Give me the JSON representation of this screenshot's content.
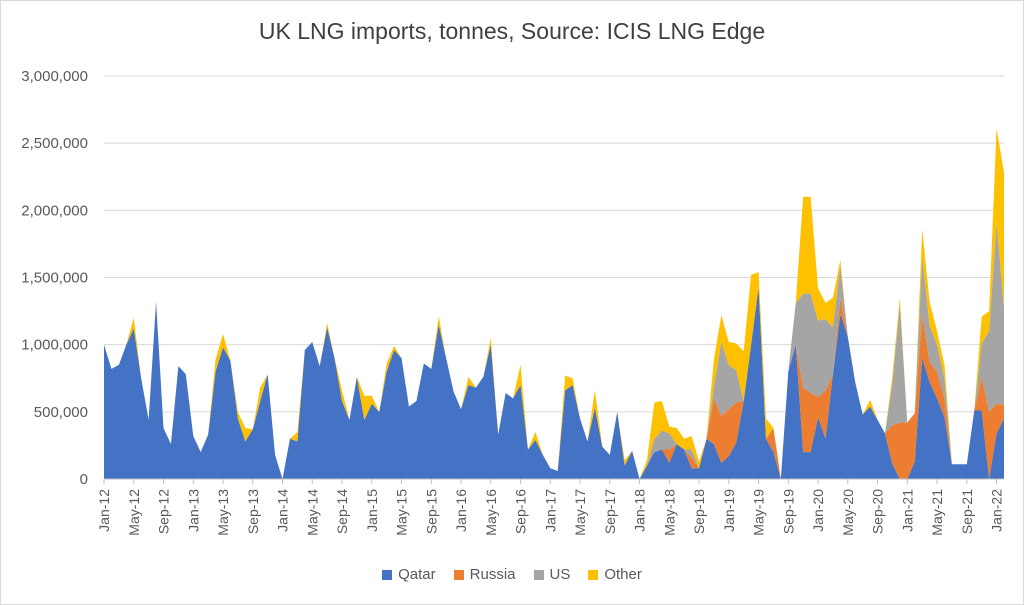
{
  "chart_data": {
    "type": "area",
    "stacked": true,
    "title": "UK LNG imports, tonnes, Source: ICIS LNG Edge",
    "xlabel": "",
    "ylabel": "",
    "ylim": [
      0,
      3000000
    ],
    "yticks": [
      0,
      500000,
      1000000,
      1500000,
      2000000,
      2500000,
      3000000
    ],
    "ytick_labels": [
      "0",
      "500,000",
      "1,000,000",
      "1,500,000",
      "2,000,000",
      "2,500,000",
      "3,000,000"
    ],
    "start": "2012-01",
    "xtick_labels": [
      "Jan-12",
      "May-12",
      "Sep-12",
      "Jan-13",
      "May-13",
      "Sep-13",
      "Jan-14",
      "May-14",
      "Sep-14",
      "Jan-15",
      "May-15",
      "Sep-15",
      "Jan-16",
      "May-16",
      "Sep-16",
      "Jan-17",
      "May-17",
      "Sep-17",
      "Jan-18",
      "May-18",
      "Sep-18",
      "Jan-19",
      "May-19",
      "Sep-19",
      "Jan-20",
      "May-20",
      "Sep-20",
      "Jan-21",
      "May-21",
      "Sep-21",
      "Jan-22"
    ],
    "legend_position": "bottom",
    "series": [
      {
        "name": "Qatar",
        "color": "#4472C4",
        "values": [
          1000000,
          820000,
          850000,
          1000000,
          1120000,
          750000,
          440000,
          1320000,
          380000,
          260000,
          840000,
          780000,
          320000,
          200000,
          330000,
          800000,
          980000,
          880000,
          450000,
          280000,
          370000,
          580000,
          780000,
          180000,
          0,
          300000,
          280000,
          960000,
          1020000,
          840000,
          1130000,
          900000,
          580000,
          440000,
          760000,
          440000,
          560000,
          500000,
          800000,
          960000,
          900000,
          540000,
          580000,
          860000,
          820000,
          1150000,
          900000,
          650000,
          520000,
          700000,
          680000,
          760000,
          1000000,
          330000,
          640000,
          600000,
          700000,
          220000,
          290000,
          180000,
          80000,
          60000,
          660000,
          700000,
          450000,
          280000,
          530000,
          240000,
          180000,
          500000,
          100000,
          210000,
          0,
          100000,
          200000,
          220000,
          120000,
          260000,
          220000,
          80000,
          80000,
          300000,
          260000,
          120000,
          170000,
          270000,
          580000,
          1000000,
          1430000,
          300000,
          200000,
          0,
          800000,
          1000000,
          200000,
          200000,
          460000,
          300000,
          780000,
          1230000,
          1060000,
          720000,
          480000,
          540000,
          440000,
          340000,
          110000,
          0,
          0,
          130000,
          900000,
          720000,
          600000,
          460000,
          110000,
          110000,
          110000,
          510000,
          510000,
          0,
          340000,
          450000
        ]
      },
      {
        "name": "Russia",
        "color": "#ED7D31",
        "values": [
          0,
          0,
          0,
          0,
          0,
          0,
          0,
          0,
          0,
          0,
          0,
          0,
          0,
          0,
          0,
          0,
          0,
          0,
          0,
          0,
          0,
          0,
          0,
          0,
          0,
          0,
          0,
          0,
          0,
          0,
          0,
          0,
          0,
          0,
          0,
          0,
          0,
          0,
          0,
          0,
          0,
          0,
          0,
          0,
          0,
          0,
          0,
          0,
          0,
          0,
          0,
          0,
          0,
          0,
          0,
          0,
          0,
          0,
          0,
          0,
          0,
          0,
          0,
          0,
          0,
          0,
          0,
          0,
          0,
          0,
          0,
          0,
          0,
          0,
          0,
          0,
          100000,
          0,
          0,
          80000,
          0,
          0,
          340000,
          350000,
          350000,
          300000,
          0,
          0,
          0,
          0,
          180000,
          0,
          0,
          0,
          480000,
          440000,
          150000,
          360000,
          0,
          120000,
          0,
          0,
          0,
          0,
          0,
          0,
          290000,
          420000,
          420000,
          360000,
          330000,
          150000,
          200000,
          140000,
          0,
          0,
          0,
          0,
          250000,
          500000,
          220000,
          100000
        ]
      },
      {
        "name": "US",
        "color": "#A5A5A5",
        "values": [
          0,
          0,
          0,
          0,
          0,
          0,
          0,
          0,
          0,
          0,
          0,
          0,
          0,
          0,
          0,
          0,
          0,
          0,
          0,
          0,
          0,
          0,
          0,
          0,
          0,
          0,
          0,
          0,
          0,
          0,
          0,
          0,
          0,
          0,
          0,
          0,
          0,
          0,
          0,
          0,
          0,
          0,
          0,
          0,
          0,
          0,
          0,
          0,
          0,
          0,
          0,
          0,
          0,
          0,
          0,
          0,
          0,
          0,
          0,
          0,
          0,
          0,
          0,
          0,
          0,
          0,
          0,
          0,
          0,
          0,
          0,
          0,
          0,
          0,
          100000,
          140000,
          120000,
          0,
          0,
          60000,
          0,
          0,
          90000,
          550000,
          330000,
          240000,
          0,
          0,
          0,
          0,
          0,
          0,
          0,
          310000,
          700000,
          740000,
          570000,
          530000,
          350000,
          240000,
          0,
          0,
          0,
          0,
          0,
          0,
          320000,
          880000,
          0,
          0,
          430000,
          270000,
          200000,
          150000,
          0,
          0,
          0,
          0,
          250000,
          600000,
          1350000,
          730000
        ]
      },
      {
        "name": "Other",
        "color": "#FFC000",
        "values": [
          0,
          0,
          0,
          0,
          80000,
          0,
          0,
          0,
          0,
          0,
          0,
          0,
          0,
          0,
          0,
          90000,
          100000,
          0,
          50000,
          100000,
          0,
          100000,
          0,
          0,
          0,
          0,
          70000,
          0,
          0,
          0,
          30000,
          0,
          80000,
          0,
          0,
          180000,
          60000,
          0,
          60000,
          30000,
          0,
          0,
          0,
          0,
          0,
          60000,
          0,
          0,
          0,
          60000,
          0,
          0,
          50000,
          0,
          0,
          0,
          150000,
          0,
          60000,
          0,
          0,
          0,
          110000,
          50000,
          0,
          0,
          130000,
          0,
          0,
          0,
          40000,
          0,
          0,
          40000,
          270000,
          220000,
          50000,
          120000,
          80000,
          100000,
          50000,
          0,
          200000,
          200000,
          170000,
          200000,
          370000,
          520000,
          110000,
          150000,
          0,
          0,
          0,
          0,
          720000,
          720000,
          240000,
          120000,
          220000,
          40000,
          0,
          0,
          0,
          50000,
          0,
          0,
          50000,
          50000,
          0,
          0,
          200000,
          180000,
          100000,
          100000,
          0,
          0,
          0,
          0,
          200000,
          150000,
          700000,
          1000000
        ]
      }
    ]
  }
}
